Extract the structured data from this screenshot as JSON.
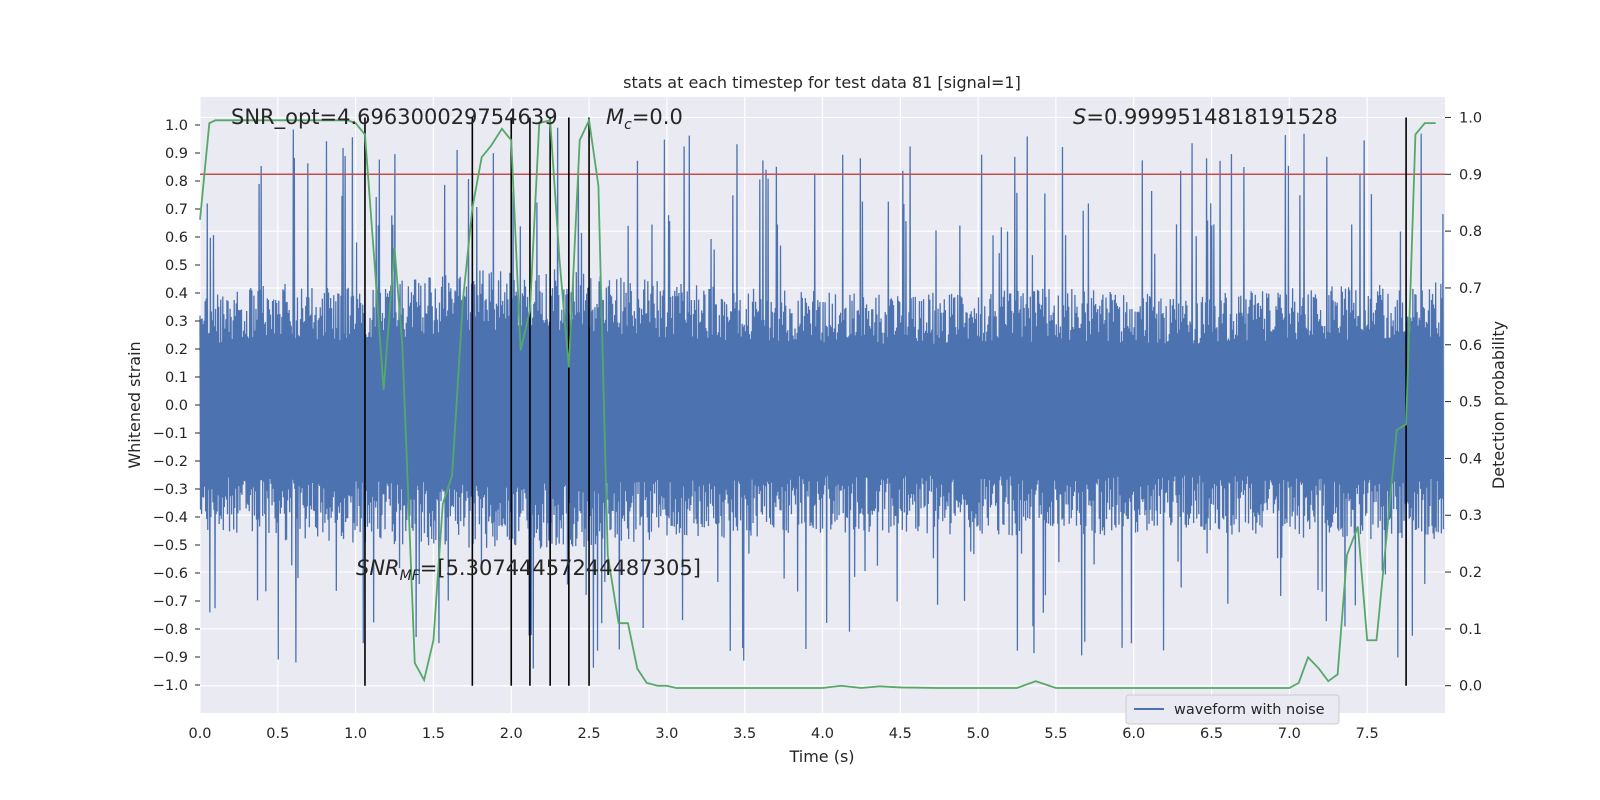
{
  "chart_data": {
    "type": "line",
    "title": "stats at each timestep for test data 81 [signal=1]",
    "xlabel": "Time (s)",
    "ylabel": "Whitened strain",
    "y2label": "Detection probability",
    "xlim": [
      0.0,
      8.0
    ],
    "ylim": [
      -1.1,
      1.1
    ],
    "y2lim": [
      -0.048,
      1.036
    ],
    "x_ticks": [
      "0.0",
      "0.5",
      "1.0",
      "1.5",
      "2.0",
      "2.5",
      "3.0",
      "3.5",
      "4.0",
      "4.5",
      "5.0",
      "5.5",
      "6.0",
      "6.5",
      "7.0",
      "7.5"
    ],
    "x_tick_values": [
      0,
      0.5,
      1,
      1.5,
      2,
      2.5,
      3,
      3.5,
      4,
      4.5,
      5,
      5.5,
      6,
      6.5,
      7,
      7.5
    ],
    "y_ticks": [
      "1.0",
      "0.9",
      "0.8",
      "0.7",
      "0.6",
      "0.5",
      "0.4",
      "0.3",
      "0.2",
      "0.1",
      "0.0",
      "−0.1",
      "−0.2",
      "−0.3",
      "−0.4",
      "−0.5",
      "−0.6",
      "−0.7",
      "−0.8",
      "−0.9",
      "−1.0"
    ],
    "y_tick_values": [
      1.0,
      0.9,
      0.8,
      0.7,
      0.6,
      0.5,
      0.4,
      0.3,
      0.2,
      0.1,
      0.0,
      -0.1,
      -0.2,
      -0.3,
      -0.4,
      -0.5,
      -0.6,
      -0.7,
      -0.8,
      -0.9,
      -1.0
    ],
    "y2_ticks": [
      "1.0",
      "0.9",
      "0.8",
      "0.7",
      "0.6",
      "0.5",
      "0.4",
      "0.3",
      "0.2",
      "0.1",
      "0.0"
    ],
    "y2_tick_values": [
      1.0,
      0.9,
      0.8,
      0.7,
      0.6,
      0.5,
      0.4,
      0.3,
      0.2,
      0.1,
      0.0
    ],
    "annotations": {
      "snr_opt": "SNR_opt=4.696300029754639",
      "mc_symbol": "M",
      "mc_sub": "c",
      "mc_value": "=0.0",
      "s_symbol": "S",
      "s_value": "=0.9999514818191528",
      "snr_mf_symbol": "SNR",
      "snr_mf_sub": "MF",
      "snr_mf_value": "=[5.30744457244487305]"
    },
    "legend": {
      "entries": [
        "waveform with noise"
      ],
      "position": "lower-right"
    },
    "threshold": 0.9,
    "detection_markers": [
      1.06,
      1.75,
      2.0,
      2.12,
      2.25,
      2.37,
      2.5,
      7.75
    ],
    "detection_probability": {
      "x": [
        0.0,
        0.06,
        0.1,
        0.5,
        0.95,
        1.0,
        1.06,
        1.12,
        1.18,
        1.25,
        1.3,
        1.38,
        1.44,
        1.5,
        1.56,
        1.62,
        1.69,
        1.75,
        1.81,
        1.87,
        1.94,
        2.0,
        2.06,
        2.12,
        2.18,
        2.25,
        2.31,
        2.37,
        2.44,
        2.5,
        2.56,
        2.62,
        2.69,
        2.75,
        2.81,
        2.87,
        2.94,
        3.0,
        3.06,
        3.12,
        3.25,
        3.5,
        4.0,
        4.12,
        4.25,
        4.37,
        4.5,
        4.75,
        5.0,
        5.25,
        5.37,
        5.5,
        6.0,
        6.5,
        7.0,
        7.06,
        7.12,
        7.19,
        7.25,
        7.31,
        7.37,
        7.44,
        7.5,
        7.56,
        7.62,
        7.69,
        7.75,
        7.81,
        7.87,
        7.94
      ],
      "y": [
        0.82,
        0.99,
        0.995,
        0.995,
        0.995,
        0.99,
        0.97,
        0.75,
        0.52,
        0.77,
        0.6,
        0.04,
        0.01,
        0.08,
        0.32,
        0.37,
        0.68,
        0.84,
        0.93,
        0.95,
        0.98,
        0.96,
        0.59,
        0.66,
        0.99,
        0.995,
        0.75,
        0.56,
        0.96,
        0.995,
        0.88,
        0.23,
        0.11,
        0.11,
        0.03,
        0.005,
        0.0,
        0.0,
        -0.004,
        -0.004,
        -0.004,
        -0.004,
        -0.004,
        0.0,
        -0.004,
        -0.001,
        -0.003,
        -0.004,
        -0.004,
        -0.004,
        0.008,
        -0.004,
        -0.004,
        -0.004,
        -0.004,
        0.005,
        0.05,
        0.03,
        0.008,
        0.02,
        0.23,
        0.28,
        0.08,
        0.08,
        0.25,
        0.45,
        0.46,
        0.97,
        0.99,
        0.99
      ]
    },
    "noise_envelope": {
      "x": [
        0.0,
        0.5,
        1.0,
        1.5,
        2.0,
        2.5,
        3.0,
        3.5,
        4.0,
        4.5,
        5.0,
        5.5,
        6.0,
        6.5,
        7.0,
        7.5,
        7.99
      ],
      "upper": [
        0.35,
        0.4,
        0.38,
        0.42,
        0.45,
        0.44,
        0.4,
        0.38,
        0.37,
        0.36,
        0.37,
        0.38,
        0.37,
        0.36,
        0.38,
        0.39,
        0.4
      ],
      "lower": [
        -0.42,
        -0.44,
        -0.45,
        -0.46,
        -0.47,
        -0.46,
        -0.44,
        -0.43,
        -0.42,
        -0.42,
        -0.42,
        -0.43,
        -0.42,
        -0.42,
        -0.43,
        -0.44,
        -0.44
      ]
    },
    "colors": {
      "background": "#eaeaf2",
      "grid": "#ffffff",
      "strain": "#4c72b0",
      "probability": "#55a868",
      "threshold": "#c44e52",
      "marker": "#000000"
    }
  }
}
